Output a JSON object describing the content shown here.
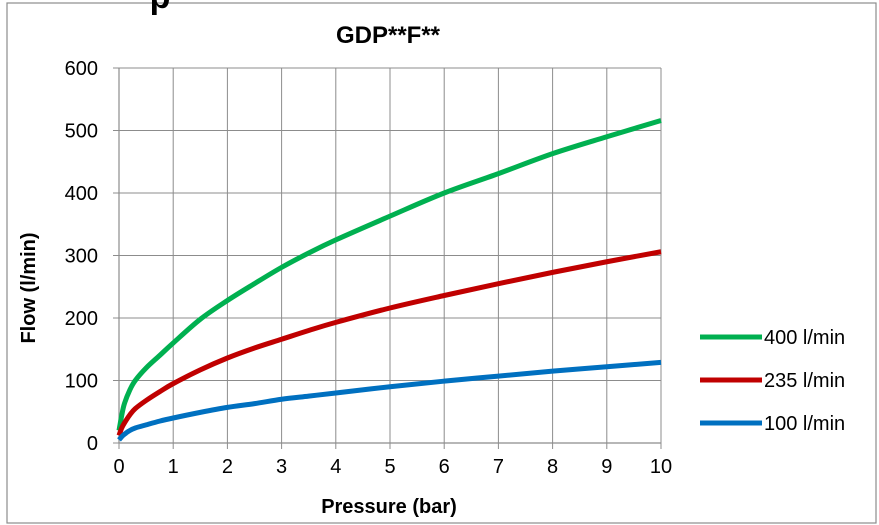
{
  "chart_data": {
    "type": "line",
    "title": "GDP**F**",
    "partial_heading": "p",
    "xlabel": "Pressure (bar)",
    "ylabel": "Flow (l/min)",
    "xlim": [
      0,
      10
    ],
    "ylim": [
      0,
      600
    ],
    "x_ticks": [
      0,
      1,
      2,
      3,
      4,
      5,
      6,
      7,
      8,
      9,
      10
    ],
    "y_ticks": [
      0,
      100,
      200,
      300,
      400,
      500,
      600
    ],
    "grid": true,
    "legend_position": "right",
    "series": [
      {
        "name": "400 l/min",
        "color": "#00b050",
        "x": [
          0,
          0.05,
          0.1,
          0.2,
          0.3,
          0.5,
          0.75,
          1,
          1.5,
          2,
          2.5,
          3,
          3.5,
          4,
          5,
          6,
          7,
          8,
          9,
          10
        ],
        "y": [
          20,
          44,
          63,
          85,
          100,
          120,
          140,
          160,
          198,
          228,
          255,
          281,
          304,
          325,
          363,
          400,
          431,
          463,
          490,
          516
        ]
      },
      {
        "name": "235 l/min",
        "color": "#c00000",
        "x": [
          0,
          0.05,
          0.1,
          0.2,
          0.3,
          0.5,
          0.75,
          1,
          1.5,
          2,
          2.5,
          3,
          3.5,
          4,
          5,
          6,
          7,
          8,
          9,
          10
        ],
        "y": [
          12,
          24,
          32,
          45,
          55,
          68,
          82,
          95,
          117,
          136,
          152,
          166,
          180,
          193,
          216,
          236,
          255,
          273,
          290,
          306
        ]
      },
      {
        "name": "100 l/min",
        "color": "#0070c0",
        "x": [
          0,
          0.05,
          0.1,
          0.2,
          0.3,
          0.5,
          0.75,
          1,
          1.5,
          2,
          2.5,
          3,
          3.5,
          4,
          5,
          6,
          7,
          8,
          9,
          10
        ],
        "y": [
          5,
          10,
          14,
          20,
          24,
          29,
          35,
          40,
          49,
          57,
          63,
          70,
          75,
          80,
          90,
          99,
          107,
          115,
          122,
          129
        ]
      }
    ]
  }
}
